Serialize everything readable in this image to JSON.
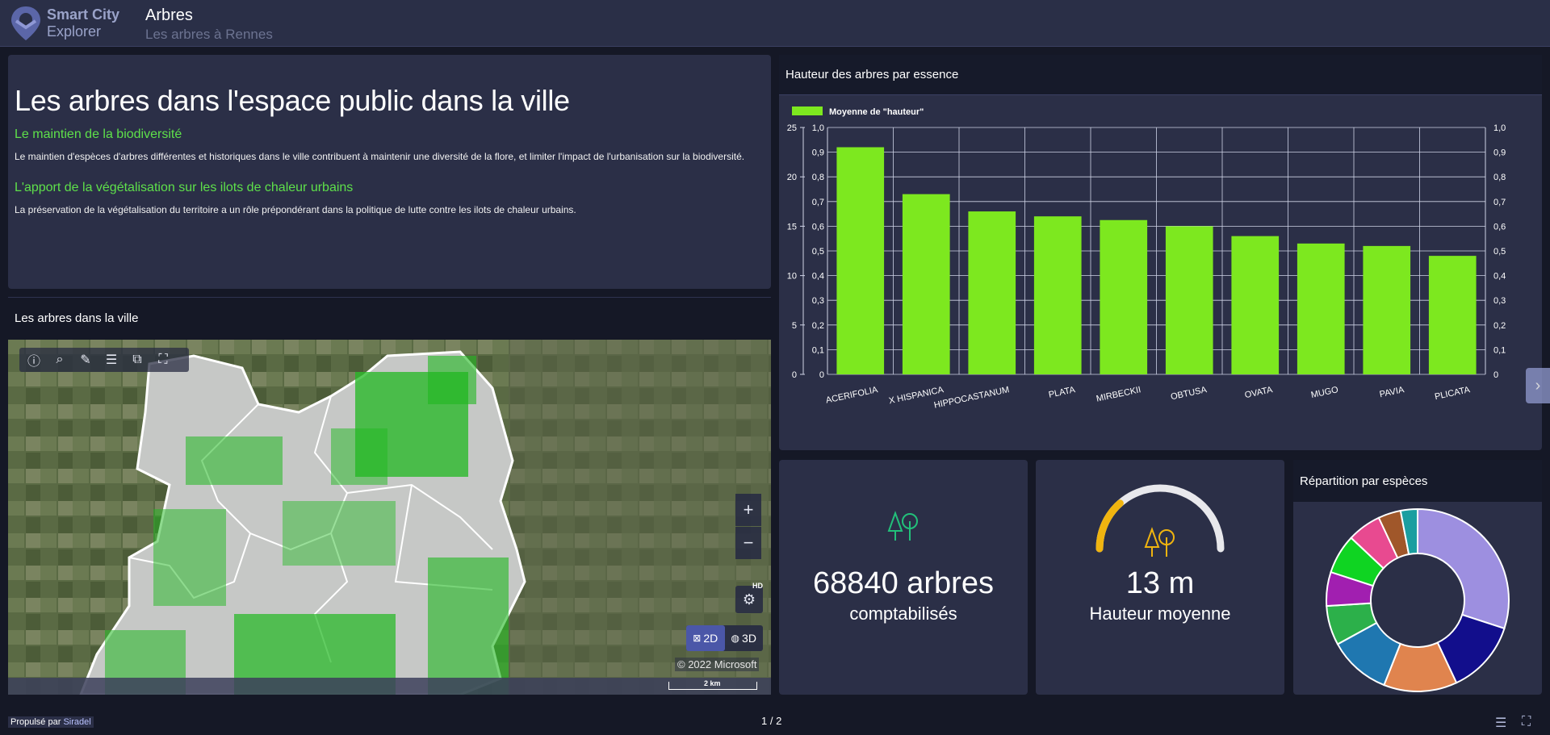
{
  "header": {
    "brand_line1": "Smart City",
    "brand_line2": "Explorer",
    "title": "Arbres",
    "subtitle": "Les arbres à Rennes"
  },
  "intro": {
    "heading": "Les arbres dans l'espace public dans la ville",
    "section1_title": "Le maintien de la biodiversité",
    "section1_text": "Le maintien d'espèces d'arbres différentes et historiques dans le ville contribuent à maintenir une diversité de la flore, et limiter l'impact de l'urbanisation sur la biodiversité.",
    "section2_title": "L'apport de la végétalisation sur les ilots de chaleur urbains",
    "section2_text": "La préservation de la végétalisation du territoire a un rôle prépondérant dans la politique de lutte contre les ilots de chaleur urbains."
  },
  "map": {
    "title": "Les arbres dans la ville",
    "zoom_in": "+",
    "zoom_out": "−",
    "hd_label": "HD",
    "btn_2d": "2D",
    "btn_3d": "3D",
    "copyright": "© 2022 Microsoft",
    "scale": "2 km",
    "toolbar": [
      "info-icon",
      "search-icon",
      "brush-icon",
      "list-icon",
      "layers-icon",
      "fullscreen-icon"
    ]
  },
  "chart_data": {
    "type": "bar",
    "title": "Hauteur des arbres par essence",
    "legend": "Moyenne de \"hauteur\"",
    "legend_position": "top-left",
    "categories": [
      "ACERIFOLIA",
      "X HISPANICA",
      "HIPPOCASTANUM",
      "PLATA",
      "MIRBECKII",
      "OBTUSA",
      "OVATA",
      "MUGO",
      "PAVIA",
      "PLICATA"
    ],
    "values": [
      0.92,
      0.73,
      0.66,
      0.64,
      0.625,
      0.6,
      0.56,
      0.53,
      0.52,
      0.48
    ],
    "left_axis_outer": [
      "25",
      "20",
      "15",
      "10",
      "5",
      "0"
    ],
    "left_axis_inner": [
      "1,0",
      "0,9",
      "0,8",
      "0,7",
      "0,6",
      "0,5",
      "0,4",
      "0,3",
      "0,2",
      "0,1",
      "0"
    ],
    "right_axis": [
      "1,0",
      "0,9",
      "0,8",
      "0,7",
      "0,6",
      "0,5",
      "0,4",
      "0,3",
      "0,2",
      "0,1",
      "0"
    ],
    "ylim": [
      0,
      1
    ],
    "grid": true,
    "bar_color": "#7de81f"
  },
  "kpi1": {
    "value": "68840 arbres",
    "label": "comptabilisés",
    "icon": "trees-icon",
    "icon_color": "#22c07a"
  },
  "kpi2": {
    "value": "13 m",
    "label": "Hauteur moyenne",
    "icon": "trees-icon",
    "icon_color": "#f0b40f",
    "gauge_fraction": 0.27
  },
  "pie": {
    "title": "Répartition par espèces",
    "chart_data": {
      "type": "pie",
      "values": [
        30,
        13,
        13,
        11,
        7,
        6,
        7,
        6,
        4,
        3
      ],
      "colors": [
        "#9d8fe0",
        "#120e8c",
        "#e0844e",
        "#1f77b0",
        "#2cb04a",
        "#a11fb0",
        "#0fd422",
        "#e84a90",
        "#a0572a",
        "#1a9ea0"
      ]
    }
  },
  "footer": {
    "propulse": "Propulsé par",
    "brand": "Siradel",
    "pager": "1 / 2"
  }
}
